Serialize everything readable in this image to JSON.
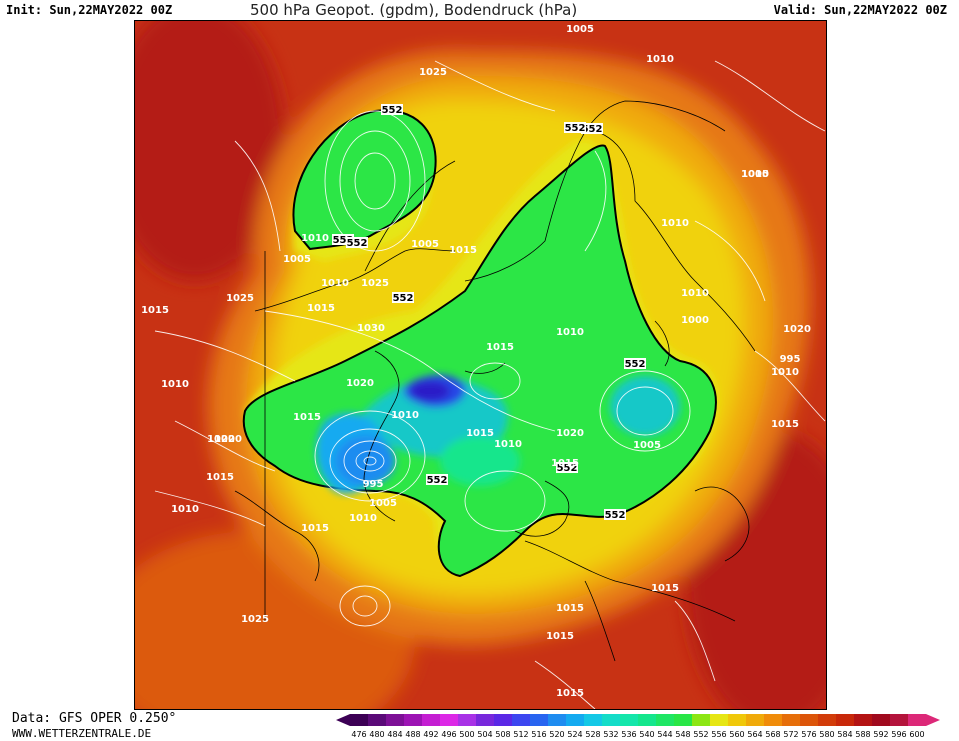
{
  "header": {
    "init": "Init: Sun,22MAY2022 00Z",
    "title": "500 hPa Geopot. (gpdm), Bodendruck (hPa)",
    "valid": "Valid: Sun,22MAY2022 00Z"
  },
  "footer": {
    "data_source": "Data: GFS OPER 0.250°",
    "website": "WWW.WETTERZENTRALE.DE"
  },
  "colorbar": {
    "levels": [
      "476",
      "480",
      "484",
      "488",
      "492",
      "496",
      "500",
      "504",
      "508",
      "512",
      "516",
      "520",
      "524",
      "528",
      "532",
      "536",
      "540",
      "544",
      "548",
      "552",
      "556",
      "560",
      "564",
      "568",
      "572",
      "576",
      "580",
      "584",
      "588",
      "592",
      "596",
      "600"
    ],
    "colors": [
      "#3c0055",
      "#5a0a78",
      "#7d1096",
      "#9c14b4",
      "#c41ed2",
      "#dc28e6",
      "#a832e6",
      "#7828dc",
      "#5a28e6",
      "#3c46f0",
      "#2864f0",
      "#1e8cf0",
      "#14aaf0",
      "#14c8e6",
      "#14dcc8",
      "#14e6aa",
      "#14e68c",
      "#1ee664",
      "#28e646",
      "#8ce614",
      "#e6e614",
      "#f0c80a",
      "#f0aa0a",
      "#f08c0a",
      "#e66e0a",
      "#dc550a",
      "#d23c0a",
      "#c8280a",
      "#b41414",
      "#a00a1e",
      "#b4143c",
      "#dc2878"
    ]
  },
  "map": {
    "geopotential_labels": [
      "552",
      "552",
      "552",
      "552",
      "552",
      "552",
      "552",
      "552",
      "552",
      "552"
    ],
    "pressure_labels": [
      "1005",
      "1010",
      "1025",
      "1010",
      "1005",
      "1010",
      "1010",
      "1005",
      "1015",
      "1010",
      "1020",
      "1020",
      "1015",
      "1030",
      "1025",
      "1005",
      "1015",
      "1010",
      "1010",
      "1000",
      "1010",
      "1015",
      "1010",
      "1015",
      "1010",
      "995",
      "1005",
      "1020",
      "1015",
      "1005",
      "1015",
      "995",
      "1010",
      "1020",
      "1010",
      "1015",
      "1020",
      "1015",
      "1015",
      "1015",
      "1010",
      "1015",
      "1015",
      "1025",
      "1025",
      "1015"
    ]
  }
}
